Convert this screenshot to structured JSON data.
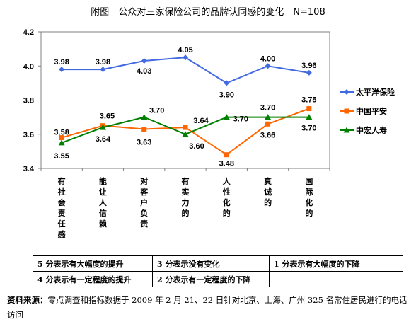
{
  "chart_data": {
    "type": "line",
    "title": "附图　公众对三家保险公司的品牌认同感的变化　N=108",
    "categories": [
      "有社会责任感",
      "能让人信赖",
      "对客户负责",
      "有实力的",
      "人性化的",
      "真诚的",
      "国际化的"
    ],
    "ylim": [
      3.4,
      4.2
    ],
    "yticks": [
      "3.4",
      "3.6",
      "3.8",
      "4.0",
      "4.2"
    ],
    "grid": false,
    "legend_position": "right",
    "series": [
      {
        "name": "太平洋保险",
        "color": "#4169E1",
        "marker": "diamond",
        "values": [
          3.98,
          3.98,
          4.03,
          4.05,
          3.9,
          4.0,
          3.96
        ],
        "labels": [
          "3.98",
          "3.98",
          "4.03",
          "4.05",
          "3.90",
          "4.00",
          "3.96"
        ]
      },
      {
        "name": "中国平安",
        "color": "#FF6600",
        "marker": "square",
        "values": [
          3.58,
          3.65,
          3.63,
          3.64,
          3.48,
          3.66,
          3.75
        ],
        "labels": [
          "3.58",
          "3.65",
          "3.63",
          "3.64",
          "3.48",
          "3.66",
          "3.75"
        ]
      },
      {
        "name": "中宏人寿",
        "color": "#008000",
        "marker": "triangle",
        "values": [
          3.55,
          3.64,
          3.7,
          3.6,
          3.7,
          3.7,
          3.7
        ],
        "labels": [
          "3.55",
          "3.64",
          "3.70",
          "3.60",
          "3.70",
          "3.70",
          "3.70"
        ]
      }
    ]
  },
  "scale_legend": {
    "row1": [
      "5 分表示有大幅度的提升",
      "3 分表示没有变化",
      "1 分表示有大幅度的下降"
    ],
    "row2": [
      "4 分表示有一定程度的提升",
      "2 分表示有一定程度的下降",
      ""
    ]
  },
  "source": {
    "label": "资料来源：",
    "text": "零点调查和指标数据于 2009 年 2 月 21、22 日针对北京、上海、广州 325 名常住居民进行的电话访问"
  }
}
